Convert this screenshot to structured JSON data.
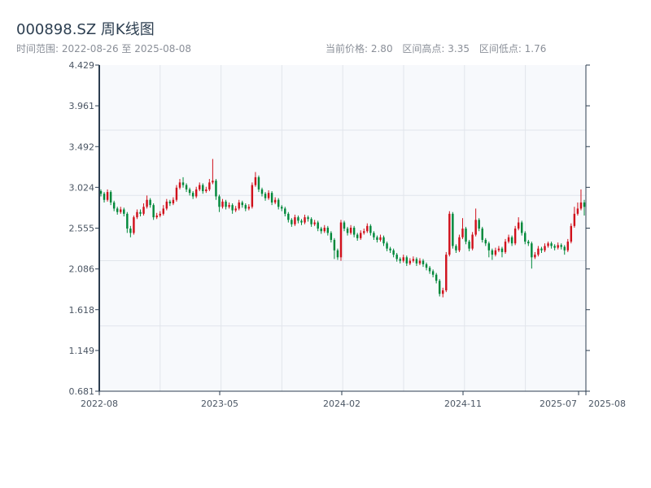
{
  "header": {
    "title": "000898.SZ 周K线图",
    "range_label": "时间范围: 2022-08-26 至 2025-08-08",
    "current_price": "当前价格: 2.80",
    "range_high": "区间高点: 3.35",
    "range_low": "区间低点: 1.76"
  },
  "chart_data": {
    "type": "candlestick",
    "title": "000898.SZ 周K线图",
    "xlabel": "",
    "ylabel": "",
    "ylim": [
      0.681,
      4.429
    ],
    "y_ticks": [
      "4.429",
      "3.961",
      "3.492",
      "3.024",
      "2.555",
      "2.086",
      "1.618",
      "1.149",
      "0.681"
    ],
    "x_ticks": [
      "2022-08",
      "2023-05",
      "2024-02",
      "2024-11",
      "2025-07",
      "2025-08"
    ],
    "grid": true,
    "colors": {
      "up": "#d0101b",
      "down": "#00883a",
      "background": "#f7f9fc",
      "axis": "#2c3e50",
      "grid": "#e1e5eb"
    },
    "ohlc_order": [
      "open",
      "high",
      "low",
      "close"
    ],
    "candles": [
      [
        2.98,
        3.0,
        2.92,
        2.95
      ],
      [
        2.95,
        2.97,
        2.85,
        2.88
      ],
      [
        2.88,
        3.0,
        2.86,
        2.97
      ],
      [
        2.97,
        2.99,
        2.82,
        2.85
      ],
      [
        2.85,
        2.87,
        2.75,
        2.78
      ],
      [
        2.78,
        2.8,
        2.71,
        2.74
      ],
      [
        2.74,
        2.8,
        2.72,
        2.77
      ],
      [
        2.77,
        2.79,
        2.69,
        2.72
      ],
      [
        2.72,
        2.74,
        2.5,
        2.55
      ],
      [
        2.55,
        2.58,
        2.45,
        2.5
      ],
      [
        2.5,
        2.7,
        2.48,
        2.68
      ],
      [
        2.68,
        2.77,
        2.66,
        2.74
      ],
      [
        2.74,
        2.77,
        2.69,
        2.72
      ],
      [
        2.72,
        2.84,
        2.7,
        2.8
      ],
      [
        2.8,
        2.93,
        2.78,
        2.88
      ],
      [
        2.88,
        2.9,
        2.79,
        2.82
      ],
      [
        2.82,
        2.84,
        2.65,
        2.68
      ],
      [
        2.68,
        2.73,
        2.66,
        2.7
      ],
      [
        2.7,
        2.75,
        2.68,
        2.72
      ],
      [
        2.72,
        2.82,
        2.7,
        2.78
      ],
      [
        2.78,
        2.89,
        2.76,
        2.86
      ],
      [
        2.86,
        2.88,
        2.81,
        2.84
      ],
      [
        2.84,
        2.91,
        2.82,
        2.88
      ],
      [
        2.88,
        3.05,
        2.86,
        3.02
      ],
      [
        3.02,
        3.12,
        3.0,
        3.08
      ],
      [
        3.08,
        3.14,
        3.02,
        3.05
      ],
      [
        3.05,
        3.07,
        2.97,
        3.0
      ],
      [
        3.0,
        3.02,
        2.93,
        2.96
      ],
      [
        2.96,
        2.98,
        2.89,
        2.92
      ],
      [
        2.92,
        3.03,
        2.9,
        3.0
      ],
      [
        3.0,
        3.08,
        2.98,
        3.05
      ],
      [
        3.05,
        3.07,
        2.95,
        2.98
      ],
      [
        2.98,
        3.03,
        2.96,
        3.0
      ],
      [
        3.0,
        3.12,
        2.98,
        3.08
      ],
      [
        3.08,
        3.35,
        3.06,
        3.1
      ],
      [
        3.1,
        3.12,
        2.88,
        2.92
      ],
      [
        2.92,
        2.94,
        2.74,
        2.8
      ],
      [
        2.8,
        2.89,
        2.78,
        2.86
      ],
      [
        2.86,
        2.88,
        2.77,
        2.8
      ],
      [
        2.8,
        2.85,
        2.78,
        2.82
      ],
      [
        2.82,
        2.84,
        2.72,
        2.76
      ],
      [
        2.76,
        2.81,
        2.74,
        2.78
      ],
      [
        2.78,
        2.88,
        2.76,
        2.85
      ],
      [
        2.85,
        2.87,
        2.79,
        2.82
      ],
      [
        2.82,
        2.84,
        2.75,
        2.78
      ],
      [
        2.78,
        2.83,
        2.76,
        2.8
      ],
      [
        2.8,
        3.08,
        2.78,
        3.05
      ],
      [
        3.05,
        3.2,
        3.03,
        3.14
      ],
      [
        3.14,
        3.16,
        2.97,
        3.0
      ],
      [
        3.0,
        3.02,
        2.92,
        2.95
      ],
      [
        2.95,
        2.97,
        2.87,
        2.9
      ],
      [
        2.9,
        2.99,
        2.88,
        2.96
      ],
      [
        2.96,
        2.98,
        2.82,
        2.85
      ],
      [
        2.85,
        2.91,
        2.83,
        2.88
      ],
      [
        2.88,
        2.9,
        2.77,
        2.8
      ],
      [
        2.8,
        2.82,
        2.75,
        2.78
      ],
      [
        2.78,
        2.8,
        2.69,
        2.72
      ],
      [
        2.72,
        2.74,
        2.62,
        2.65
      ],
      [
        2.65,
        2.67,
        2.57,
        2.6
      ],
      [
        2.6,
        2.71,
        2.58,
        2.68
      ],
      [
        2.68,
        2.7,
        2.61,
        2.64
      ],
      [
        2.64,
        2.66,
        2.59,
        2.62
      ],
      [
        2.62,
        2.71,
        2.6,
        2.68
      ],
      [
        2.68,
        2.7,
        2.63,
        2.66
      ],
      [
        2.66,
        2.68,
        2.57,
        2.6
      ],
      [
        2.6,
        2.65,
        2.58,
        2.62
      ],
      [
        2.62,
        2.64,
        2.52,
        2.55
      ],
      [
        2.55,
        2.57,
        2.49,
        2.52
      ],
      [
        2.52,
        2.59,
        2.5,
        2.56
      ],
      [
        2.56,
        2.58,
        2.47,
        2.5
      ],
      [
        2.5,
        2.52,
        2.39,
        2.42
      ],
      [
        2.42,
        2.44,
        2.2,
        2.3
      ],
      [
        2.3,
        2.32,
        2.19,
        2.22
      ],
      [
        2.22,
        2.65,
        2.18,
        2.62
      ],
      [
        2.62,
        2.64,
        2.52,
        2.55
      ],
      [
        2.55,
        2.57,
        2.47,
        2.5
      ],
      [
        2.5,
        2.59,
        2.48,
        2.56
      ],
      [
        2.56,
        2.58,
        2.45,
        2.48
      ],
      [
        2.48,
        2.5,
        2.41,
        2.44
      ],
      [
        2.44,
        2.53,
        2.42,
        2.5
      ],
      [
        2.5,
        2.55,
        2.48,
        2.52
      ],
      [
        2.52,
        2.61,
        2.5,
        2.58
      ],
      [
        2.58,
        2.6,
        2.47,
        2.5
      ],
      [
        2.5,
        2.52,
        2.42,
        2.45
      ],
      [
        2.45,
        2.47,
        2.39,
        2.42
      ],
      [
        2.42,
        2.48,
        2.4,
        2.45
      ],
      [
        2.45,
        2.47,
        2.35,
        2.38
      ],
      [
        2.38,
        2.4,
        2.29,
        2.32
      ],
      [
        2.32,
        2.34,
        2.27,
        2.3
      ],
      [
        2.3,
        2.32,
        2.22,
        2.25
      ],
      [
        2.25,
        2.27,
        2.17,
        2.2
      ],
      [
        2.2,
        2.22,
        2.15,
        2.18
      ],
      [
        2.18,
        2.25,
        2.16,
        2.22
      ],
      [
        2.22,
        2.24,
        2.12,
        2.15
      ],
      [
        2.15,
        2.21,
        2.13,
        2.18
      ],
      [
        2.18,
        2.23,
        2.16,
        2.2
      ],
      [
        2.2,
        2.22,
        2.12,
        2.15
      ],
      [
        2.15,
        2.21,
        2.13,
        2.18
      ],
      [
        2.18,
        2.2,
        2.11,
        2.14
      ],
      [
        2.14,
        2.16,
        2.07,
        2.1
      ],
      [
        2.1,
        2.12,
        2.03,
        2.06
      ],
      [
        2.06,
        2.08,
        1.99,
        2.02
      ],
      [
        2.02,
        2.04,
        1.92,
        1.95
      ],
      [
        1.95,
        1.97,
        1.77,
        1.8
      ],
      [
        1.8,
        1.87,
        1.76,
        1.84
      ],
      [
        1.84,
        2.28,
        1.82,
        2.25
      ],
      [
        2.25,
        2.75,
        2.23,
        2.72
      ],
      [
        2.72,
        2.74,
        2.32,
        2.35
      ],
      [
        2.35,
        2.37,
        2.27,
        2.3
      ],
      [
        2.3,
        2.48,
        2.28,
        2.45
      ],
      [
        2.45,
        2.67,
        2.43,
        2.55
      ],
      [
        2.55,
        2.57,
        2.37,
        2.4
      ],
      [
        2.4,
        2.42,
        2.29,
        2.32
      ],
      [
        2.32,
        2.51,
        2.3,
        2.48
      ],
      [
        2.48,
        2.78,
        2.46,
        2.65
      ],
      [
        2.65,
        2.67,
        2.52,
        2.55
      ],
      [
        2.55,
        2.57,
        2.39,
        2.42
      ],
      [
        2.42,
        2.44,
        2.35,
        2.38
      ],
      [
        2.38,
        2.4,
        2.22,
        2.3
      ],
      [
        2.3,
        2.32,
        2.19,
        2.25
      ],
      [
        2.25,
        2.33,
        2.23,
        2.3
      ],
      [
        2.3,
        2.35,
        2.28,
        2.32
      ],
      [
        2.32,
        2.34,
        2.22,
        2.28
      ],
      [
        2.28,
        2.43,
        2.26,
        2.4
      ],
      [
        2.4,
        2.48,
        2.38,
        2.45
      ],
      [
        2.45,
        2.47,
        2.35,
        2.38
      ],
      [
        2.38,
        2.58,
        2.36,
        2.55
      ],
      [
        2.55,
        2.68,
        2.53,
        2.62
      ],
      [
        2.62,
        2.64,
        2.47,
        2.5
      ],
      [
        2.5,
        2.52,
        2.37,
        2.4
      ],
      [
        2.4,
        2.42,
        2.35,
        2.38
      ],
      [
        2.38,
        2.4,
        2.09,
        2.22
      ],
      [
        2.22,
        2.28,
        2.2,
        2.25
      ],
      [
        2.25,
        2.35,
        2.23,
        2.32
      ],
      [
        2.32,
        2.34,
        2.27,
        2.3
      ],
      [
        2.3,
        2.38,
        2.28,
        2.35
      ],
      [
        2.35,
        2.4,
        2.33,
        2.38
      ],
      [
        2.38,
        2.4,
        2.32,
        2.35
      ],
      [
        2.35,
        2.37,
        2.3,
        2.33
      ],
      [
        2.33,
        2.39,
        2.31,
        2.36
      ],
      [
        2.36,
        2.38,
        2.31,
        2.34
      ],
      [
        2.34,
        2.36,
        2.25,
        2.3
      ],
      [
        2.3,
        2.43,
        2.28,
        2.4
      ],
      [
        2.4,
        2.61,
        2.38,
        2.58
      ],
      [
        2.58,
        2.8,
        2.56,
        2.72
      ],
      [
        2.72,
        2.85,
        2.7,
        2.78
      ],
      [
        2.78,
        3.0,
        2.76,
        2.85
      ],
      [
        2.85,
        2.88,
        2.7,
        2.8
      ]
    ]
  }
}
